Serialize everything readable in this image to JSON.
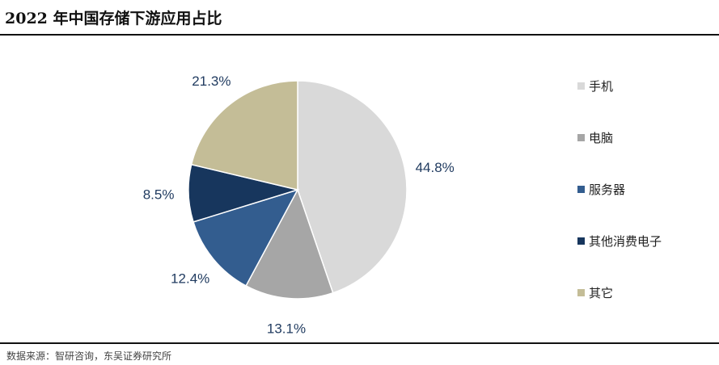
{
  "chart_data": {
    "type": "pie",
    "title": "2022 年中国存储下游应用占比",
    "categories": [
      "手机",
      "电脑",
      "服务器",
      "其他消费电子",
      "其它"
    ],
    "values": [
      44.8,
      13.1,
      12.4,
      8.5,
      21.3
    ],
    "labels": [
      "44.8%",
      "13.1%",
      "12.4%",
      "8.5%",
      "21.3%"
    ],
    "colors": [
      "#d9d9d9",
      "#a6a6a6",
      "#335d8f",
      "#17365d",
      "#c4bd97"
    ],
    "legend_position": "right"
  },
  "source": "数据来源：智研咨询，东吴证券研究所"
}
